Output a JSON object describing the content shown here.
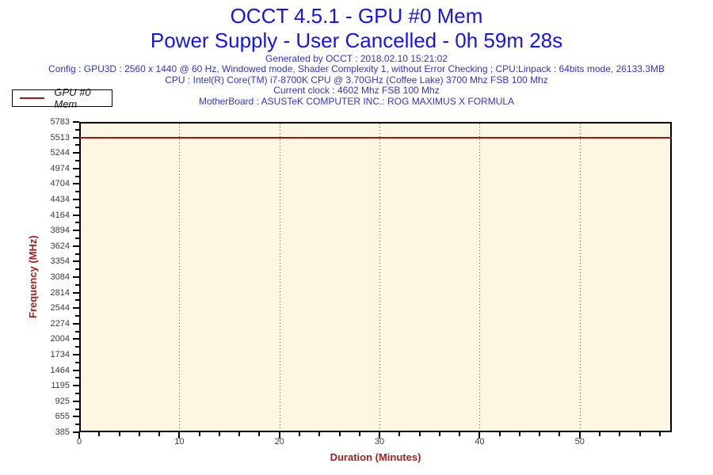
{
  "header": {
    "title_line1": "OCCT 4.5.1 - GPU #0 Mem",
    "title_line2": "Power Supply - User Cancelled - 0h 59m 28s",
    "info_lines": [
      "Generated by OCCT : 2018.02.10 15:21:02",
      "Config : GPU3D : 2560 x 1440 @ 60 Hz, Windowed mode, Shader Complexity 1, without Error Checking ; CPU:Linpack : 64bits mode, 26133.3MB",
      "CPU : Intel(R) Core(TM) i7-8700K CPU @ 3.70GHz (Coffee Lake) 3700 Mhz FSB 100 Mhz",
      "Current clock : 4602 Mhz FSB 100 Mhz",
      "MotherBoard : ASUSTeK COMPUTER INC.: ROG MAXIMUS X FORMULA"
    ]
  },
  "legend": {
    "label": "GPU #0 Mem"
  },
  "chart_data": {
    "type": "line",
    "title": "OCCT 4.5.1 - GPU #0 Mem",
    "subtitle": "Power Supply - User Cancelled - 0h 59m 28s",
    "xlabel": "Duration (Minutes)",
    "ylabel": "Frequency (MHz)",
    "xlim": [
      0,
      59.2
    ],
    "ylim": [
      385,
      5783
    ],
    "x_ticks": [
      0,
      10,
      20,
      30,
      40,
      50
    ],
    "x_minor_step": 2,
    "y_ticks": [
      5783,
      5513,
      5244,
      4974,
      4704,
      4434,
      4164,
      3894,
      3624,
      3354,
      3084,
      2814,
      2544,
      2274,
      2004,
      1734,
      1464,
      1195,
      925,
      655,
      385
    ],
    "grid": "vertical dotted at major x ticks",
    "legend_position": "top-left outside plot",
    "series": [
      {
        "name": "GPU #0 Mem",
        "x": [
          0,
          59.2
        ],
        "y": [
          5513,
          5513
        ],
        "constant_value": 5513
      }
    ]
  },
  "colors": {
    "title_blue": "#1414EE",
    "info_blue": "#3434CF",
    "axis_title_red": "#A52020",
    "series_line": "#8E1A1A",
    "plot_background": "#FDF6E3",
    "tick_label_gray": "#3C3C3C"
  }
}
